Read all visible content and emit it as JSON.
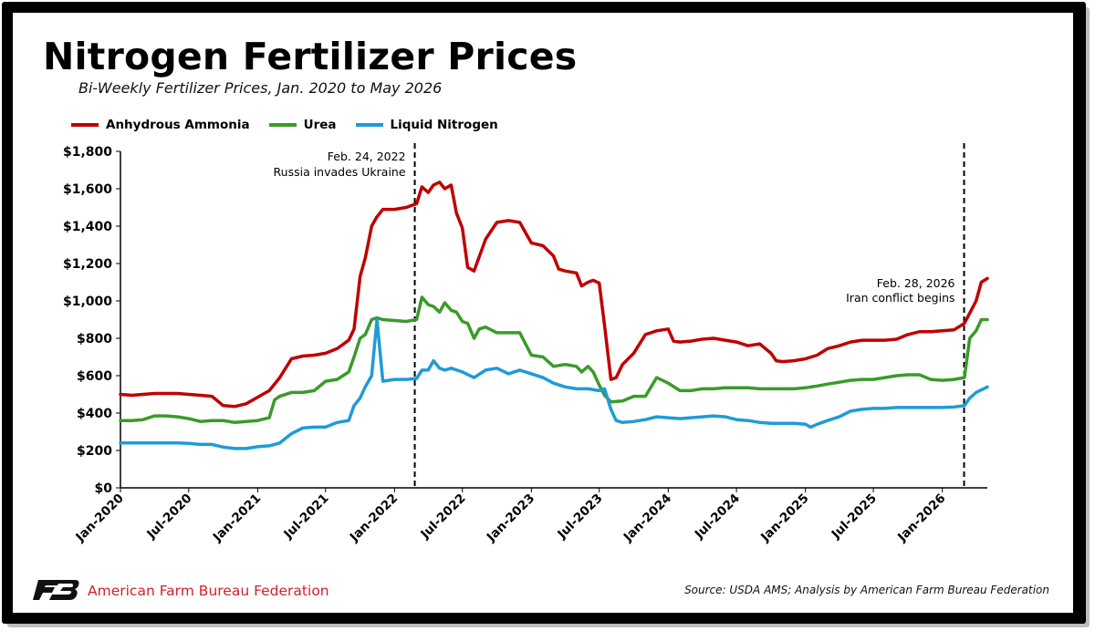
{
  "header": {
    "title": "Nitrogen Fertilizer Prices",
    "subtitle": "Bi-Weekly Fertilizer Prices, Jan. 2020 to May 2026"
  },
  "footer": {
    "organization": "American Farm Bureau Federation",
    "source": "Source: USDA AMS; Analysis by American Farm Bureau Federation"
  },
  "chart_data": {
    "type": "line",
    "title": "Nitrogen Fertilizer Prices",
    "subtitle": "Bi-Weekly Fertilizer Prices, Jan. 2020 to May 2026",
    "xlabel": "",
    "ylabel": "",
    "x_tick_labels": [
      "Jan-2020",
      "Jul-2020",
      "Jan-2021",
      "Jul-2021",
      "Jan-2022",
      "Jul-2022",
      "Jan-2023",
      "Jul-2023",
      "Jan-2024",
      "Jul-2024",
      "Jan-2025",
      "Jul-2025",
      "Jan-2026"
    ],
    "y_tick_labels": [
      "$0",
      "$200",
      "$400",
      "$600",
      "$800",
      "$1,000",
      "$1,200",
      "$1,400",
      "$1,600",
      "$1,800"
    ],
    "ylim": [
      0,
      1800
    ],
    "xlim": [
      "2020-01",
      "2026-05"
    ],
    "grid": false,
    "legend_position": "top-left",
    "series": [
      {
        "name": "Anhydrous Ammonia",
        "color": "#c00000",
        "points": [
          [
            "2020-01",
            500
          ],
          [
            "2020-02",
            495
          ],
          [
            "2020-03",
            500
          ],
          [
            "2020-04",
            505
          ],
          [
            "2020-05",
            505
          ],
          [
            "2020-06",
            505
          ],
          [
            "2020-07",
            500
          ],
          [
            "2020-08",
            495
          ],
          [
            "2020-09",
            490
          ],
          [
            "2020-10",
            440
          ],
          [
            "2020-11",
            435
          ],
          [
            "2020-12",
            450
          ],
          [
            "2021-01",
            485
          ],
          [
            "2021-02",
            520
          ],
          [
            "2021-03",
            590
          ],
          [
            "2021-04",
            690
          ],
          [
            "2021-05",
            705
          ],
          [
            "2021-06",
            710
          ],
          [
            "2021-07",
            720
          ],
          [
            "2021-08",
            745
          ],
          [
            "2021-09",
            790
          ],
          [
            "2021-09-15",
            850
          ],
          [
            "2021-10",
            1130
          ],
          [
            "2021-10-15",
            1230
          ],
          [
            "2021-11",
            1400
          ],
          [
            "2021-11-15",
            1450
          ],
          [
            "2021-12",
            1490
          ],
          [
            "2022-01",
            1490
          ],
          [
            "2022-02",
            1500
          ],
          [
            "2022-03",
            1520
          ],
          [
            "2022-03-15",
            1610
          ],
          [
            "2022-04",
            1580
          ],
          [
            "2022-04-15",
            1620
          ],
          [
            "2022-05",
            1635
          ],
          [
            "2022-05-15",
            1600
          ],
          [
            "2022-06",
            1620
          ],
          [
            "2022-06-15",
            1470
          ],
          [
            "2022-07",
            1390
          ],
          [
            "2022-07-15",
            1180
          ],
          [
            "2022-08",
            1160
          ],
          [
            "2022-09",
            1330
          ],
          [
            "2022-10",
            1420
          ],
          [
            "2022-11",
            1430
          ],
          [
            "2022-12",
            1420
          ],
          [
            "2023-01",
            1310
          ],
          [
            "2023-02",
            1295
          ],
          [
            "2023-03",
            1240
          ],
          [
            "2023-03-15",
            1170
          ],
          [
            "2023-04",
            1160
          ],
          [
            "2023-05",
            1150
          ],
          [
            "2023-05-15",
            1080
          ],
          [
            "2023-06",
            1100
          ],
          [
            "2023-06-15",
            1110
          ],
          [
            "2023-07",
            1095
          ],
          [
            "2023-07-15",
            870
          ],
          [
            "2023-08",
            580
          ],
          [
            "2023-08-15",
            590
          ],
          [
            "2023-09",
            660
          ],
          [
            "2023-10",
            720
          ],
          [
            "2023-11",
            820
          ],
          [
            "2023-12",
            840
          ],
          [
            "2024-01",
            850
          ],
          [
            "2024-01-15",
            785
          ],
          [
            "2024-02",
            780
          ],
          [
            "2024-03",
            785
          ],
          [
            "2024-04",
            795
          ],
          [
            "2024-05",
            800
          ],
          [
            "2024-06",
            790
          ],
          [
            "2024-07",
            780
          ],
          [
            "2024-08",
            760
          ],
          [
            "2024-09",
            770
          ],
          [
            "2024-10",
            720
          ],
          [
            "2024-10-15",
            680
          ],
          [
            "2024-11",
            675
          ],
          [
            "2024-12",
            680
          ],
          [
            "2025-01",
            690
          ],
          [
            "2025-02",
            710
          ],
          [
            "2025-03",
            745
          ],
          [
            "2025-04",
            760
          ],
          [
            "2025-05",
            780
          ],
          [
            "2025-06",
            790
          ],
          [
            "2025-07",
            790
          ],
          [
            "2025-08",
            790
          ],
          [
            "2025-09",
            795
          ],
          [
            "2025-10",
            820
          ],
          [
            "2025-11",
            835
          ],
          [
            "2025-12",
            835
          ],
          [
            "2026-01",
            840
          ],
          [
            "2026-02",
            845
          ],
          [
            "2026-03",
            880
          ],
          [
            "2026-04",
            1000
          ],
          [
            "2026-04-15",
            1100
          ],
          [
            "2026-05",
            1120
          ]
        ]
      },
      {
        "name": "Urea",
        "color": "#3a9b29",
        "points": [
          [
            "2020-01",
            360
          ],
          [
            "2020-02",
            360
          ],
          [
            "2020-03",
            365
          ],
          [
            "2020-04",
            385
          ],
          [
            "2020-05",
            385
          ],
          [
            "2020-06",
            380
          ],
          [
            "2020-07",
            370
          ],
          [
            "2020-08",
            355
          ],
          [
            "2020-09",
            360
          ],
          [
            "2020-10",
            360
          ],
          [
            "2020-11",
            350
          ],
          [
            "2020-12",
            355
          ],
          [
            "2021-01",
            360
          ],
          [
            "2021-02",
            375
          ],
          [
            "2021-02-15",
            470
          ],
          [
            "2021-03",
            490
          ],
          [
            "2021-04",
            510
          ],
          [
            "2021-05",
            510
          ],
          [
            "2021-06",
            520
          ],
          [
            "2021-07",
            570
          ],
          [
            "2021-08",
            580
          ],
          [
            "2021-09",
            620
          ],
          [
            "2021-09-15",
            700
          ],
          [
            "2021-10",
            800
          ],
          [
            "2021-10-15",
            820
          ],
          [
            "2021-11",
            900
          ],
          [
            "2021-11-15",
            910
          ],
          [
            "2021-12",
            900
          ],
          [
            "2022-01",
            895
          ],
          [
            "2022-02",
            890
          ],
          [
            "2022-03",
            900
          ],
          [
            "2022-03-15",
            1020
          ],
          [
            "2022-04",
            980
          ],
          [
            "2022-04-15",
            970
          ],
          [
            "2022-05",
            940
          ],
          [
            "2022-05-15",
            990
          ],
          [
            "2022-06",
            950
          ],
          [
            "2022-06-15",
            940
          ],
          [
            "2022-07",
            890
          ],
          [
            "2022-07-15",
            880
          ],
          [
            "2022-08",
            800
          ],
          [
            "2022-08-15",
            850
          ],
          [
            "2022-09",
            860
          ],
          [
            "2022-10",
            830
          ],
          [
            "2022-11",
            830
          ],
          [
            "2022-12",
            830
          ],
          [
            "2023-01",
            710
          ],
          [
            "2023-02",
            700
          ],
          [
            "2023-03",
            650
          ],
          [
            "2023-04",
            660
          ],
          [
            "2023-05",
            650
          ],
          [
            "2023-05-15",
            620
          ],
          [
            "2023-06",
            650
          ],
          [
            "2023-06-15",
            620
          ],
          [
            "2023-07",
            550
          ],
          [
            "2023-07-15",
            495
          ],
          [
            "2023-08",
            460
          ],
          [
            "2023-09",
            465
          ],
          [
            "2023-10",
            490
          ],
          [
            "2023-11",
            490
          ],
          [
            "2023-12",
            590
          ],
          [
            "2024-01",
            560
          ],
          [
            "2024-02",
            520
          ],
          [
            "2024-03",
            520
          ],
          [
            "2024-04",
            530
          ],
          [
            "2024-05",
            530
          ],
          [
            "2024-06",
            535
          ],
          [
            "2024-07",
            535
          ],
          [
            "2024-08",
            535
          ],
          [
            "2024-09",
            530
          ],
          [
            "2024-10",
            530
          ],
          [
            "2024-11",
            530
          ],
          [
            "2024-12",
            530
          ],
          [
            "2025-01",
            535
          ],
          [
            "2025-02",
            545
          ],
          [
            "2025-03",
            555
          ],
          [
            "2025-04",
            565
          ],
          [
            "2025-05",
            575
          ],
          [
            "2025-06",
            580
          ],
          [
            "2025-07",
            580
          ],
          [
            "2025-08",
            590
          ],
          [
            "2025-09",
            600
          ],
          [
            "2025-10",
            605
          ],
          [
            "2025-11",
            605
          ],
          [
            "2025-12",
            580
          ],
          [
            "2026-01",
            575
          ],
          [
            "2026-02",
            580
          ],
          [
            "2026-03",
            590
          ],
          [
            "2026-03-15",
            800
          ],
          [
            "2026-04",
            840
          ],
          [
            "2026-04-15",
            900
          ],
          [
            "2026-05",
            900
          ]
        ]
      },
      {
        "name": "Liquid Nitrogen",
        "color": "#1f9bd7",
        "points": [
          [
            "2020-01",
            240
          ],
          [
            "2020-02",
            240
          ],
          [
            "2020-03",
            240
          ],
          [
            "2020-04",
            240
          ],
          [
            "2020-05",
            240
          ],
          [
            "2020-06",
            240
          ],
          [
            "2020-07",
            238
          ],
          [
            "2020-08",
            232
          ],
          [
            "2020-09",
            232
          ],
          [
            "2020-10",
            218
          ],
          [
            "2020-11",
            210
          ],
          [
            "2020-12",
            210
          ],
          [
            "2021-01",
            220
          ],
          [
            "2021-02",
            225
          ],
          [
            "2021-03",
            240
          ],
          [
            "2021-04",
            290
          ],
          [
            "2021-05",
            320
          ],
          [
            "2021-06",
            325
          ],
          [
            "2021-07",
            325
          ],
          [
            "2021-08",
            350
          ],
          [
            "2021-09",
            360
          ],
          [
            "2021-09-15",
            440
          ],
          [
            "2021-10",
            480
          ],
          [
            "2021-10-15",
            540
          ],
          [
            "2021-11",
            600
          ],
          [
            "2021-11-15",
            900
          ],
          [
            "2021-12",
            570
          ],
          [
            "2022-01",
            580
          ],
          [
            "2022-02",
            580
          ],
          [
            "2022-03",
            585
          ],
          [
            "2022-03-15",
            630
          ],
          [
            "2022-04",
            630
          ],
          [
            "2022-04-15",
            680
          ],
          [
            "2022-05",
            640
          ],
          [
            "2022-05-15",
            630
          ],
          [
            "2022-06",
            640
          ],
          [
            "2022-07",
            620
          ],
          [
            "2022-08",
            590
          ],
          [
            "2022-09",
            630
          ],
          [
            "2022-10",
            640
          ],
          [
            "2022-11",
            610
          ],
          [
            "2022-12",
            630
          ],
          [
            "2023-01",
            610
          ],
          [
            "2023-02",
            590
          ],
          [
            "2023-03",
            560
          ],
          [
            "2023-04",
            540
          ],
          [
            "2023-05",
            530
          ],
          [
            "2023-06",
            530
          ],
          [
            "2023-07",
            520
          ],
          [
            "2023-07-15",
            530
          ],
          [
            "2023-08",
            420
          ],
          [
            "2023-08-15",
            360
          ],
          [
            "2023-09",
            350
          ],
          [
            "2023-10",
            355
          ],
          [
            "2023-11",
            365
          ],
          [
            "2023-12",
            380
          ],
          [
            "2024-01",
            375
          ],
          [
            "2024-02",
            370
          ],
          [
            "2024-03",
            375
          ],
          [
            "2024-04",
            380
          ],
          [
            "2024-05",
            385
          ],
          [
            "2024-06",
            380
          ],
          [
            "2024-07",
            365
          ],
          [
            "2024-08",
            360
          ],
          [
            "2024-09",
            350
          ],
          [
            "2024-10",
            345
          ],
          [
            "2024-11",
            345
          ],
          [
            "2024-12",
            345
          ],
          [
            "2025-01",
            340
          ],
          [
            "2025-01-15",
            325
          ],
          [
            "2025-02",
            340
          ],
          [
            "2025-03",
            360
          ],
          [
            "2025-04",
            380
          ],
          [
            "2025-05",
            410
          ],
          [
            "2025-06",
            420
          ],
          [
            "2025-07",
            425
          ],
          [
            "2025-08",
            425
          ],
          [
            "2025-09",
            430
          ],
          [
            "2025-10",
            430
          ],
          [
            "2025-11",
            430
          ],
          [
            "2025-12",
            430
          ],
          [
            "2026-01",
            430
          ],
          [
            "2026-02",
            432
          ],
          [
            "2026-03",
            440
          ],
          [
            "2026-03-15",
            480
          ],
          [
            "2026-04",
            510
          ],
          [
            "2026-05",
            540
          ]
        ]
      }
    ],
    "annotations": [
      {
        "date": "2022-02-24",
        "line1": "Feb. 24, 2022",
        "line2": "Russia invades Ukraine",
        "style": "dashed"
      },
      {
        "date": "2026-02-28",
        "line1": "Feb. 28, 2026",
        "line2": "Iran conflict begins",
        "style": "dashed"
      }
    ]
  }
}
